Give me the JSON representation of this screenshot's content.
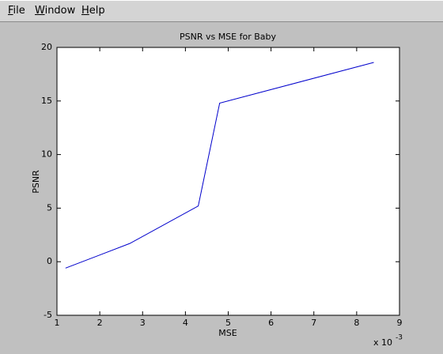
{
  "menu": [
    "File",
    "Window",
    "Help"
  ],
  "chart_data": {
    "type": "line",
    "title": "PSNR vs MSE for Baby",
    "x_label": "MSE",
    "y_label": "PSNR",
    "x_multiplier": {
      "base": "x 10",
      "power": "-3"
    },
    "x": [
      1.2,
      2.7,
      4.3,
      4.8,
      8.4
    ],
    "series": [
      {
        "color": "#0000cc",
        "values": [
          -0.6,
          1.7,
          5.2,
          14.8,
          18.6
        ]
      }
    ],
    "xlim": [
      1,
      9
    ],
    "xticks": [
      1,
      2,
      3,
      4,
      5,
      6,
      7,
      8,
      9
    ],
    "ylim": [
      -5,
      20
    ],
    "yticks": [
      -5,
      0,
      5,
      10,
      15,
      20
    ],
    "grid": false
  }
}
